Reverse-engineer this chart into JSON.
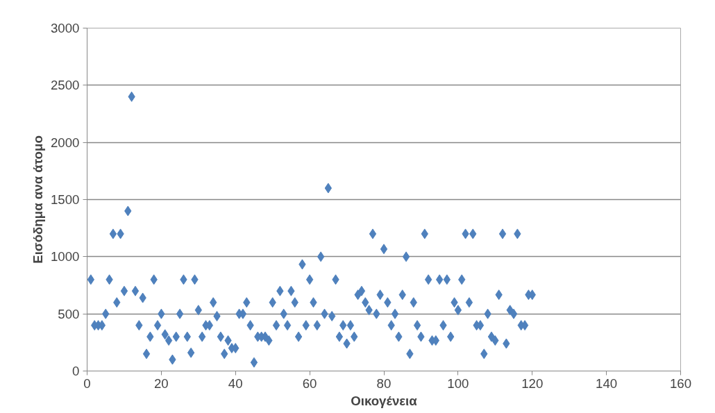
{
  "chart_data": {
    "type": "scatter",
    "xlabel": "Οικογένεια",
    "ylabel": "Εισόδημα ανα άτομο",
    "x": [
      1,
      2,
      3,
      4,
      5,
      6,
      7,
      8,
      9,
      10,
      11,
      12,
      13,
      14,
      15,
      16,
      17,
      18,
      19,
      20,
      21,
      22,
      23,
      24,
      25,
      26,
      27,
      28,
      29,
      30,
      31,
      32,
      33,
      34,
      35,
      36,
      37,
      38,
      39,
      40,
      41,
      42,
      43,
      44,
      45,
      46,
      47,
      48,
      49,
      50,
      51,
      52,
      53,
      54,
      55,
      56,
      57,
      58,
      59,
      60,
      61,
      62,
      63,
      64,
      65,
      66,
      67,
      68,
      69,
      70,
      71,
      72,
      73,
      74,
      75,
      76,
      77,
      78,
      79,
      80,
      81,
      82,
      83,
      84,
      85,
      86,
      87,
      88,
      89,
      90,
      91,
      92,
      93,
      94,
      95,
      96,
      97,
      98,
      99,
      100,
      101,
      102,
      103,
      104,
      105,
      106,
      107,
      108,
      109,
      110,
      111,
      112,
      113,
      114,
      115,
      116,
      117,
      118,
      119,
      120
    ],
    "series": [
      {
        "color": "#4f81bd",
        "values": [
          800,
          400,
          400,
          400,
          500,
          800,
          1200,
          600,
          1200,
          700,
          1400,
          2400,
          700,
          400,
          640,
          150,
          300,
          800,
          400,
          500,
          320,
          267,
          100,
          300,
          500,
          800,
          300,
          160,
          800,
          533,
          300,
          400,
          400,
          600,
          480,
          300,
          150,
          267,
          200,
          200,
          500,
          500,
          600,
          400,
          75,
          300,
          300,
          300,
          267,
          600,
          400,
          700,
          500,
          400,
          700,
          600,
          300,
          933,
          400,
          800,
          600,
          400,
          1000,
          500,
          1600,
          480,
          800,
          300,
          400,
          240,
          400,
          300,
          667,
          700,
          600,
          533,
          1200,
          500,
          667,
          1067,
          600,
          400,
          500,
          300,
          667,
          1000,
          150,
          600,
          400,
          300,
          1200,
          800,
          267,
          267,
          800,
          400,
          800,
          300,
          600,
          533,
          800,
          1200,
          600,
          1200,
          400,
          400,
          150,
          500,
          300,
          267,
          667,
          1200,
          240,
          533,
          500,
          1200,
          400,
          400,
          667,
          667
        ]
      }
    ],
    "xlim": [
      0,
      160
    ],
    "xticks": [
      0,
      20,
      40,
      60,
      80,
      100,
      120,
      140,
      160
    ],
    "ylim": [
      0,
      3000
    ],
    "yticks": [
      0,
      500,
      1000,
      1500,
      2000,
      2500,
      3000
    ],
    "grid": "y",
    "marker": "diamond"
  }
}
